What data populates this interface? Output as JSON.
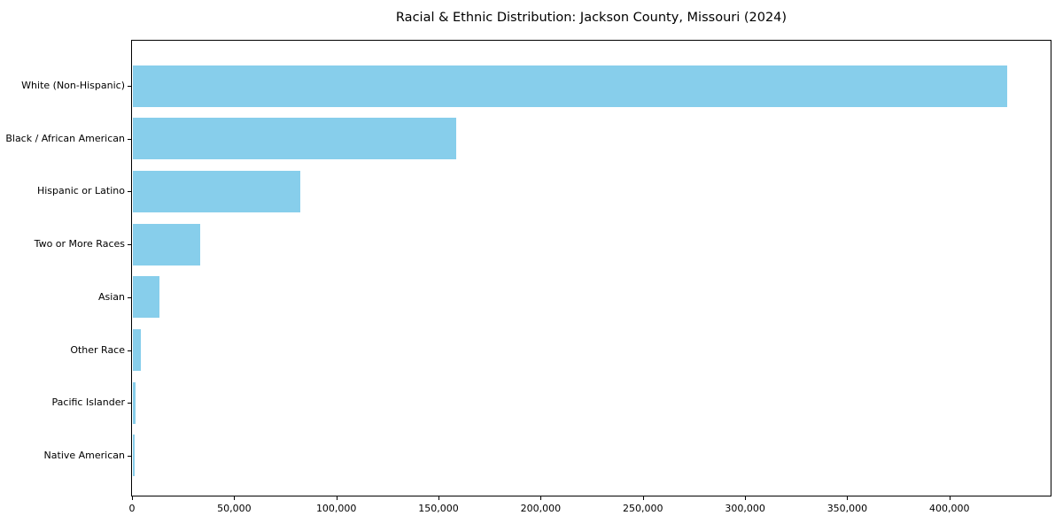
{
  "chart_data": {
    "type": "bar",
    "orientation": "horizontal",
    "title": "Racial & Ethnic Distribution: Jackson County, Missouri (2024)",
    "xlabel": "",
    "ylabel": "",
    "categories": [
      "White (Non-Hispanic)",
      "Black / African American",
      "Hispanic or Latino",
      "Two or More Races",
      "Asian",
      "Other Race",
      "Pacific Islander",
      "Native American"
    ],
    "values": [
      428000,
      158000,
      82000,
      33000,
      13000,
      4000,
      1400,
      900
    ],
    "xlim": [
      0,
      449500
    ],
    "xticks": [
      0,
      50000,
      100000,
      150000,
      200000,
      250000,
      300000,
      350000,
      400000
    ],
    "xtick_labels": [
      "0",
      "50,000",
      "100,000",
      "150,000",
      "200,000",
      "250,000",
      "300,000",
      "350,000",
      "400,000"
    ],
    "grid": false,
    "legend": null,
    "bar_color": "#87CEEB",
    "axis_color": "#000000",
    "background_color": "#ffffff"
  }
}
